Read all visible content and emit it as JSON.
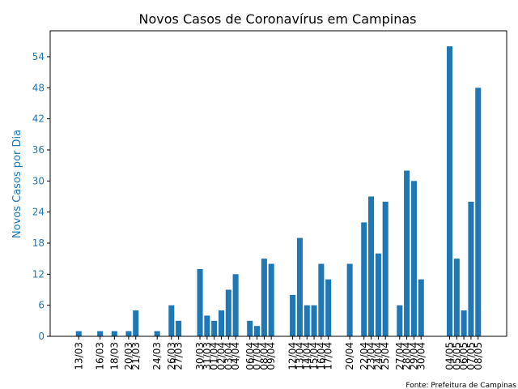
{
  "chart_data": {
    "type": "bar",
    "title": "Novos Casos de Coronavírus em Campinas",
    "xlabel": "",
    "ylabel": "Novos Casos por Dia",
    "source_note": "Fonte: Prefeitura de Campinas",
    "ylim": [
      0,
      59
    ],
    "yticks": [
      0,
      6,
      12,
      18,
      24,
      30,
      36,
      42,
      48,
      54
    ],
    "x_range_days": [
      "2020-03-09",
      "2020-05-12"
    ],
    "grid": false,
    "colors": {
      "bar": "#1f77b4",
      "ylabel": "#1f77b4",
      "ytick_label": "#1f77b4"
    },
    "data": [
      {
        "date": "13/03",
        "value": 1
      },
      {
        "date": "16/03",
        "value": 1
      },
      {
        "date": "18/03",
        "value": 1
      },
      {
        "date": "20/03",
        "value": 1
      },
      {
        "date": "21/03",
        "value": 5
      },
      {
        "date": "24/03",
        "value": 1
      },
      {
        "date": "26/03",
        "value": 6
      },
      {
        "date": "27/03",
        "value": 3
      },
      {
        "date": "30/03",
        "value": 13
      },
      {
        "date": "31/03",
        "value": 4
      },
      {
        "date": "01/04",
        "value": 3
      },
      {
        "date": "02/04",
        "value": 5
      },
      {
        "date": "03/04",
        "value": 9
      },
      {
        "date": "04/04",
        "value": 12
      },
      {
        "date": "06/04",
        "value": 3
      },
      {
        "date": "07/04",
        "value": 2
      },
      {
        "date": "08/04",
        "value": 15
      },
      {
        "date": "09/04",
        "value": 14
      },
      {
        "date": "12/04",
        "value": 8
      },
      {
        "date": "13/04",
        "value": 19
      },
      {
        "date": "14/04",
        "value": 6
      },
      {
        "date": "15/04",
        "value": 6
      },
      {
        "date": "16/04",
        "value": 14
      },
      {
        "date": "17/04",
        "value": 11
      },
      {
        "date": "20/04",
        "value": 14
      },
      {
        "date": "22/04",
        "value": 22
      },
      {
        "date": "23/04",
        "value": 27
      },
      {
        "date": "24/04",
        "value": 16
      },
      {
        "date": "25/04",
        "value": 26
      },
      {
        "date": "27/04",
        "value": 6
      },
      {
        "date": "28/04",
        "value": 32
      },
      {
        "date": "29/04",
        "value": 30
      },
      {
        "date": "30/04",
        "value": 11
      },
      {
        "date": "04/05",
        "value": 56
      },
      {
        "date": "05/05",
        "value": 15
      },
      {
        "date": "06/05",
        "value": 5
      },
      {
        "date": "07/05",
        "value": 26
      },
      {
        "date": "08/05",
        "value": 48
      }
    ]
  }
}
